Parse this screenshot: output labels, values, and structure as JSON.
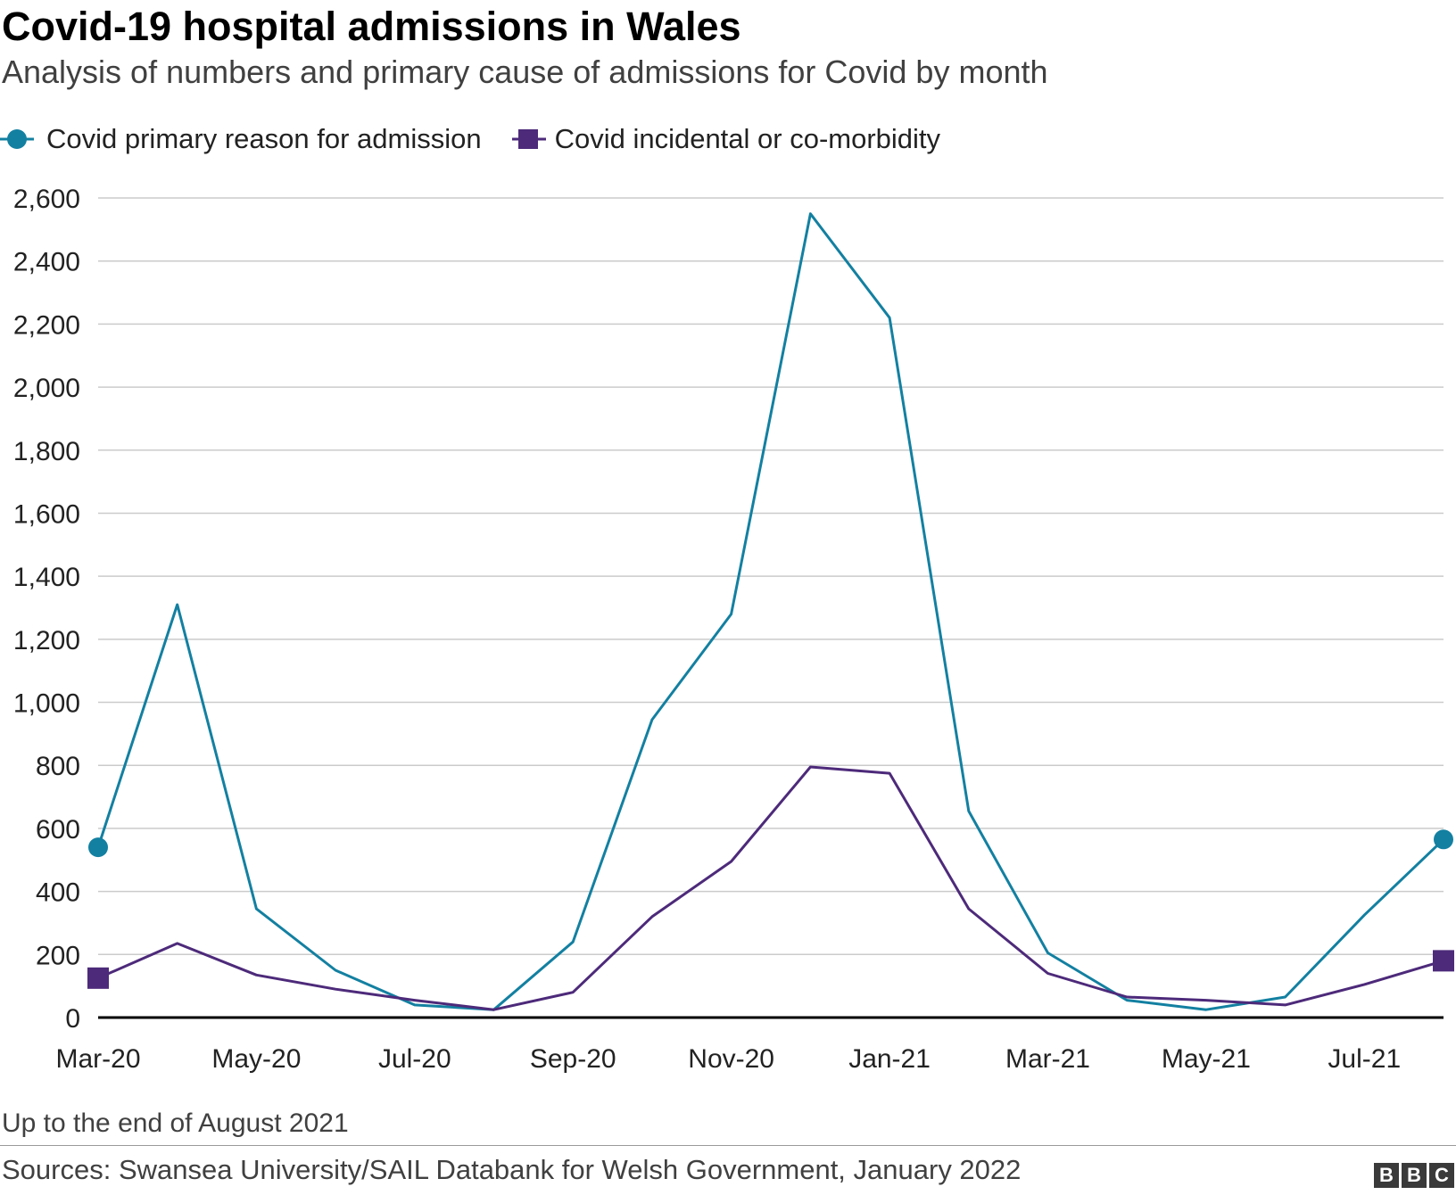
{
  "title": "Covid-19 hospital admissions in Wales",
  "subtitle": "Analysis of numbers and primary cause of admissions for Covid by month",
  "footnote": "Up to the end of August 2021",
  "sources": "Sources: Swansea University/SAIL Databank for Welsh Government, January 2022",
  "logo": [
    "B",
    "B",
    "C"
  ],
  "colors": {
    "primary": "#1380a1",
    "incidental": "#4d2a7a",
    "grid": "#cbcbcb",
    "axis": "#000000",
    "text": "#222222"
  },
  "chart_data": {
    "type": "line",
    "x": [
      "Mar-20",
      "Apr-20",
      "May-20",
      "Jun-20",
      "Jul-20",
      "Aug-20",
      "Sep-20",
      "Oct-20",
      "Nov-20",
      "Dec-20",
      "Jan-21",
      "Feb-21",
      "Mar-21",
      "Apr-21",
      "May-21",
      "Jun-21",
      "Jul-21",
      "Aug-21"
    ],
    "x_tick_labels": [
      "Mar-20",
      "May-20",
      "Jul-20",
      "Sep-20",
      "Nov-20",
      "Jan-21",
      "Mar-21",
      "May-21",
      "Jul-21"
    ],
    "y_ticks": [
      "0",
      "200",
      "400",
      "600",
      "800",
      "1,000",
      "1,200",
      "1,400",
      "1,600",
      "1,800",
      "2,000",
      "2,200",
      "2,400",
      "2,600"
    ],
    "ylim": [
      0,
      2600
    ],
    "grid": true,
    "legend_position": "top-left",
    "series": [
      {
        "name": "Covid primary reason for admission",
        "color": "#1380a1",
        "marker": "circle",
        "values": [
          540,
          1310,
          345,
          150,
          40,
          25,
          240,
          945,
          1280,
          2550,
          2220,
          655,
          205,
          55,
          25,
          65,
          325,
          565
        ]
      },
      {
        "name": "Covid incidental or co-morbidity",
        "color": "#4d2a7a",
        "marker": "square",
        "values": [
          125,
          235,
          135,
          90,
          55,
          25,
          80,
          320,
          495,
          795,
          775,
          345,
          140,
          65,
          55,
          40,
          105,
          180
        ]
      }
    ]
  }
}
